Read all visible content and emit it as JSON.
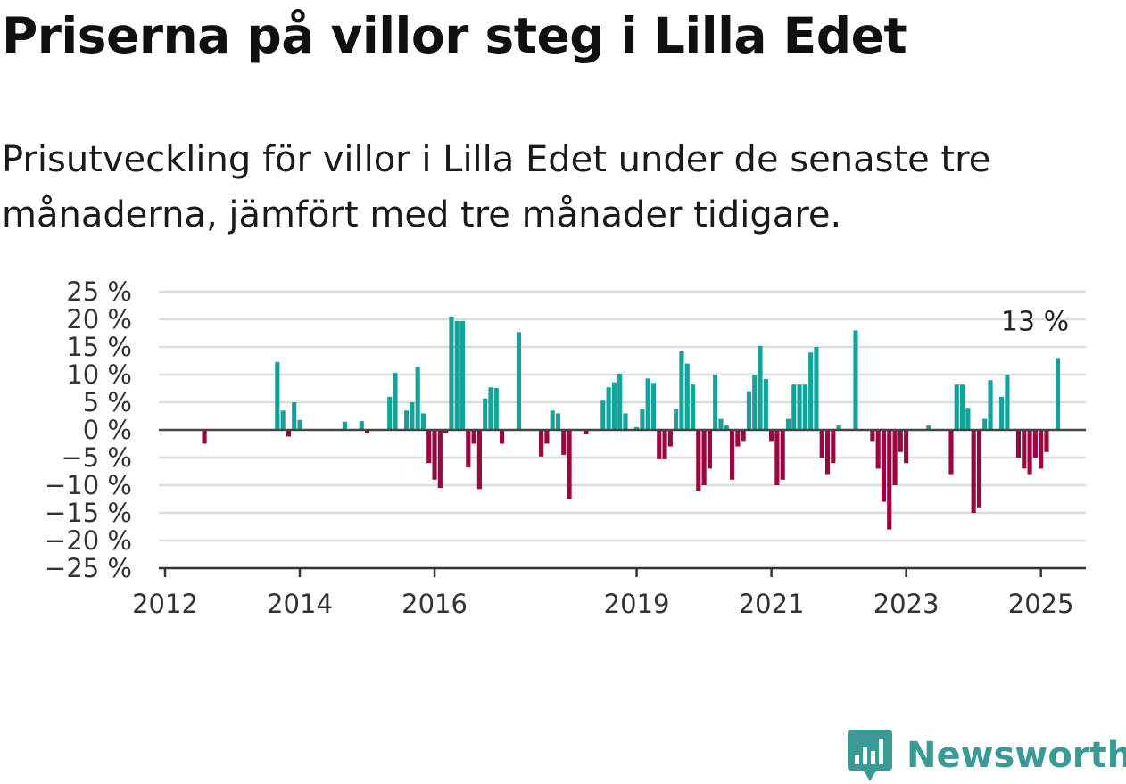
{
  "title": "Priserna på villor steg i Lilla Edet",
  "subtitle": "Prisutveckling för villor i Lilla Edet under de senaste tre månaderna, jämfört med tre månader tidigare.",
  "brand": {
    "name": "Newsworthy",
    "color": "#3a9b96"
  },
  "chart_data": {
    "type": "bar",
    "x_range": [
      "2012-01",
      "2025-09"
    ],
    "ylim": [
      -25,
      25
    ],
    "yticks": [
      25,
      20,
      15,
      10,
      5,
      0,
      -5,
      -10,
      -15,
      -20,
      -25
    ],
    "ytick_labels": [
      "25 %",
      "20 %",
      "15 %",
      "10 %",
      "5 %",
      "0 %",
      "−5 %",
      "−10 %",
      "−15 %",
      "−20 %",
      "−25 %"
    ],
    "xticks": [
      "2012",
      "2014",
      "2016",
      "2019",
      "2021",
      "2023",
      "2025"
    ],
    "positive_color": "#14a39b",
    "negative_color": "#9b0641",
    "grid": true,
    "last_value_label": "13 %",
    "points": [
      [
        "2012-08",
        -2.5
      ],
      [
        "2013-09",
        12.3
      ],
      [
        "2013-10",
        3.5
      ],
      [
        "2013-11",
        -1.2
      ],
      [
        "2013-12",
        5.0
      ],
      [
        "2014-01",
        1.8
      ],
      [
        "2014-09",
        1.5
      ],
      [
        "2014-12",
        1.6
      ],
      [
        "2015-01",
        -0.5
      ],
      [
        "2015-05",
        6.0
      ],
      [
        "2015-06",
        10.3
      ],
      [
        "2015-08",
        3.5
      ],
      [
        "2015-09",
        5.0
      ],
      [
        "2015-10",
        11.3
      ],
      [
        "2015-11",
        3.0
      ],
      [
        "2015-12",
        -6.0
      ],
      [
        "2016-01",
        -9.0
      ],
      [
        "2016-02",
        -10.5
      ],
      [
        "2016-03",
        -0.5
      ],
      [
        "2016-04",
        20.5
      ],
      [
        "2016-05",
        19.7
      ],
      [
        "2016-06",
        19.7
      ],
      [
        "2016-07",
        -6.8
      ],
      [
        "2016-08",
        -2.5
      ],
      [
        "2016-09",
        -10.7
      ],
      [
        "2016-10",
        5.7
      ],
      [
        "2016-11",
        7.7
      ],
      [
        "2016-12",
        7.6
      ],
      [
        "2017-01",
        -2.5
      ],
      [
        "2017-04",
        17.7
      ],
      [
        "2017-08",
        -4.8
      ],
      [
        "2017-09",
        -2.5
      ],
      [
        "2017-10",
        3.5
      ],
      [
        "2017-11",
        3.0
      ],
      [
        "2017-12",
        -4.5
      ],
      [
        "2018-01",
        -12.5
      ],
      [
        "2018-04",
        -0.8
      ],
      [
        "2018-07",
        5.3
      ],
      [
        "2018-08",
        7.7
      ],
      [
        "2018-09",
        8.6
      ],
      [
        "2018-10",
        10.2
      ],
      [
        "2018-11",
        3.0
      ],
      [
        "2019-01",
        0.5
      ],
      [
        "2019-02",
        3.7
      ],
      [
        "2019-03",
        9.3
      ],
      [
        "2019-04",
        8.5
      ],
      [
        "2019-05",
        -5.3
      ],
      [
        "2019-06",
        -5.3
      ],
      [
        "2019-07",
        -3.0
      ],
      [
        "2019-08",
        3.8
      ],
      [
        "2019-09",
        14.2
      ],
      [
        "2019-10",
        12.0
      ],
      [
        "2019-11",
        8.2
      ],
      [
        "2019-12",
        -11.0
      ],
      [
        "2020-01",
        -10.0
      ],
      [
        "2020-02",
        -7.0
      ],
      [
        "2020-03",
        10.0
      ],
      [
        "2020-04",
        2.0
      ],
      [
        "2020-05",
        0.8
      ],
      [
        "2020-06",
        -9.0
      ],
      [
        "2020-07",
        -3.0
      ],
      [
        "2020-08",
        -2.0
      ],
      [
        "2020-09",
        7.0
      ],
      [
        "2020-10",
        10.0
      ],
      [
        "2020-11",
        15.2
      ],
      [
        "2020-12",
        9.2
      ],
      [
        "2021-01",
        -2.0
      ],
      [
        "2021-02",
        -10.0
      ],
      [
        "2021-03",
        -9.0
      ],
      [
        "2021-04",
        2.0
      ],
      [
        "2021-05",
        8.2
      ],
      [
        "2021-06",
        8.2
      ],
      [
        "2021-07",
        8.2
      ],
      [
        "2021-08",
        14.0
      ],
      [
        "2021-09",
        15.0
      ],
      [
        "2021-10",
        -5.0
      ],
      [
        "2021-11",
        -8.0
      ],
      [
        "2021-12",
        -6.0
      ],
      [
        "2022-01",
        0.8
      ],
      [
        "2022-04",
        18.0
      ],
      [
        "2022-07",
        -2.0
      ],
      [
        "2022-08",
        -7.0
      ],
      [
        "2022-09",
        -13.0
      ],
      [
        "2022-10",
        -18.0
      ],
      [
        "2022-11",
        -10.0
      ],
      [
        "2022-12",
        -4.0
      ],
      [
        "2023-01",
        -6.0
      ],
      [
        "2023-05",
        0.8
      ],
      [
        "2023-09",
        -8.0
      ],
      [
        "2023-10",
        8.2
      ],
      [
        "2023-11",
        8.2
      ],
      [
        "2023-12",
        4.0
      ],
      [
        "2024-01",
        -15.0
      ],
      [
        "2024-02",
        -14.0
      ],
      [
        "2024-03",
        2.0
      ],
      [
        "2024-04",
        9.0
      ],
      [
        "2024-06",
        6.0
      ],
      [
        "2024-07",
        10.0
      ],
      [
        "2024-09",
        -5.0
      ],
      [
        "2024-10",
        -7.0
      ],
      [
        "2024-11",
        -8.0
      ],
      [
        "2024-12",
        -5.0
      ],
      [
        "2025-01",
        -7.0
      ],
      [
        "2025-02",
        -4.0
      ],
      [
        "2025-04",
        13.0
      ]
    ]
  }
}
